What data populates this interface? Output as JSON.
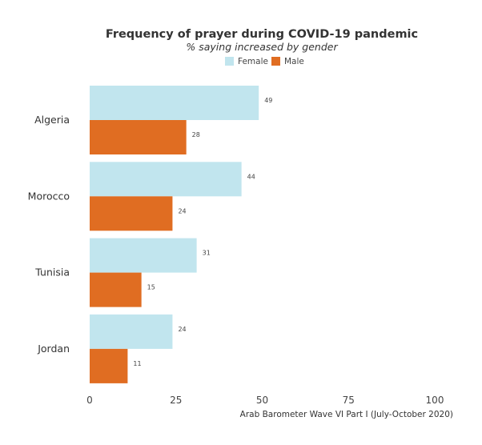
{
  "chart_data": {
    "type": "bar",
    "orientation": "horizontal",
    "title": "Frequency of prayer during COVID-19 pandemic",
    "subtitle": "% saying increased by gender",
    "categories": [
      "Algeria",
      "Morocco",
      "Tunisia",
      "Jordan"
    ],
    "series": [
      {
        "name": "Female",
        "color": "#c1e5ee",
        "values": [
          49,
          44,
          31,
          24
        ]
      },
      {
        "name": "Male",
        "color": "#e06d22",
        "values": [
          28,
          24,
          15,
          11
        ]
      }
    ],
    "xlim": [
      0,
      100
    ],
    "xticks": [
      "0",
      "25",
      "50",
      "75",
      "100"
    ],
    "xtick_values": [
      0,
      25,
      50,
      75,
      100
    ],
    "legend_position": "top",
    "grid": false,
    "caption": "Arab Barometer Wave VI Part I (July-October 2020)"
  }
}
